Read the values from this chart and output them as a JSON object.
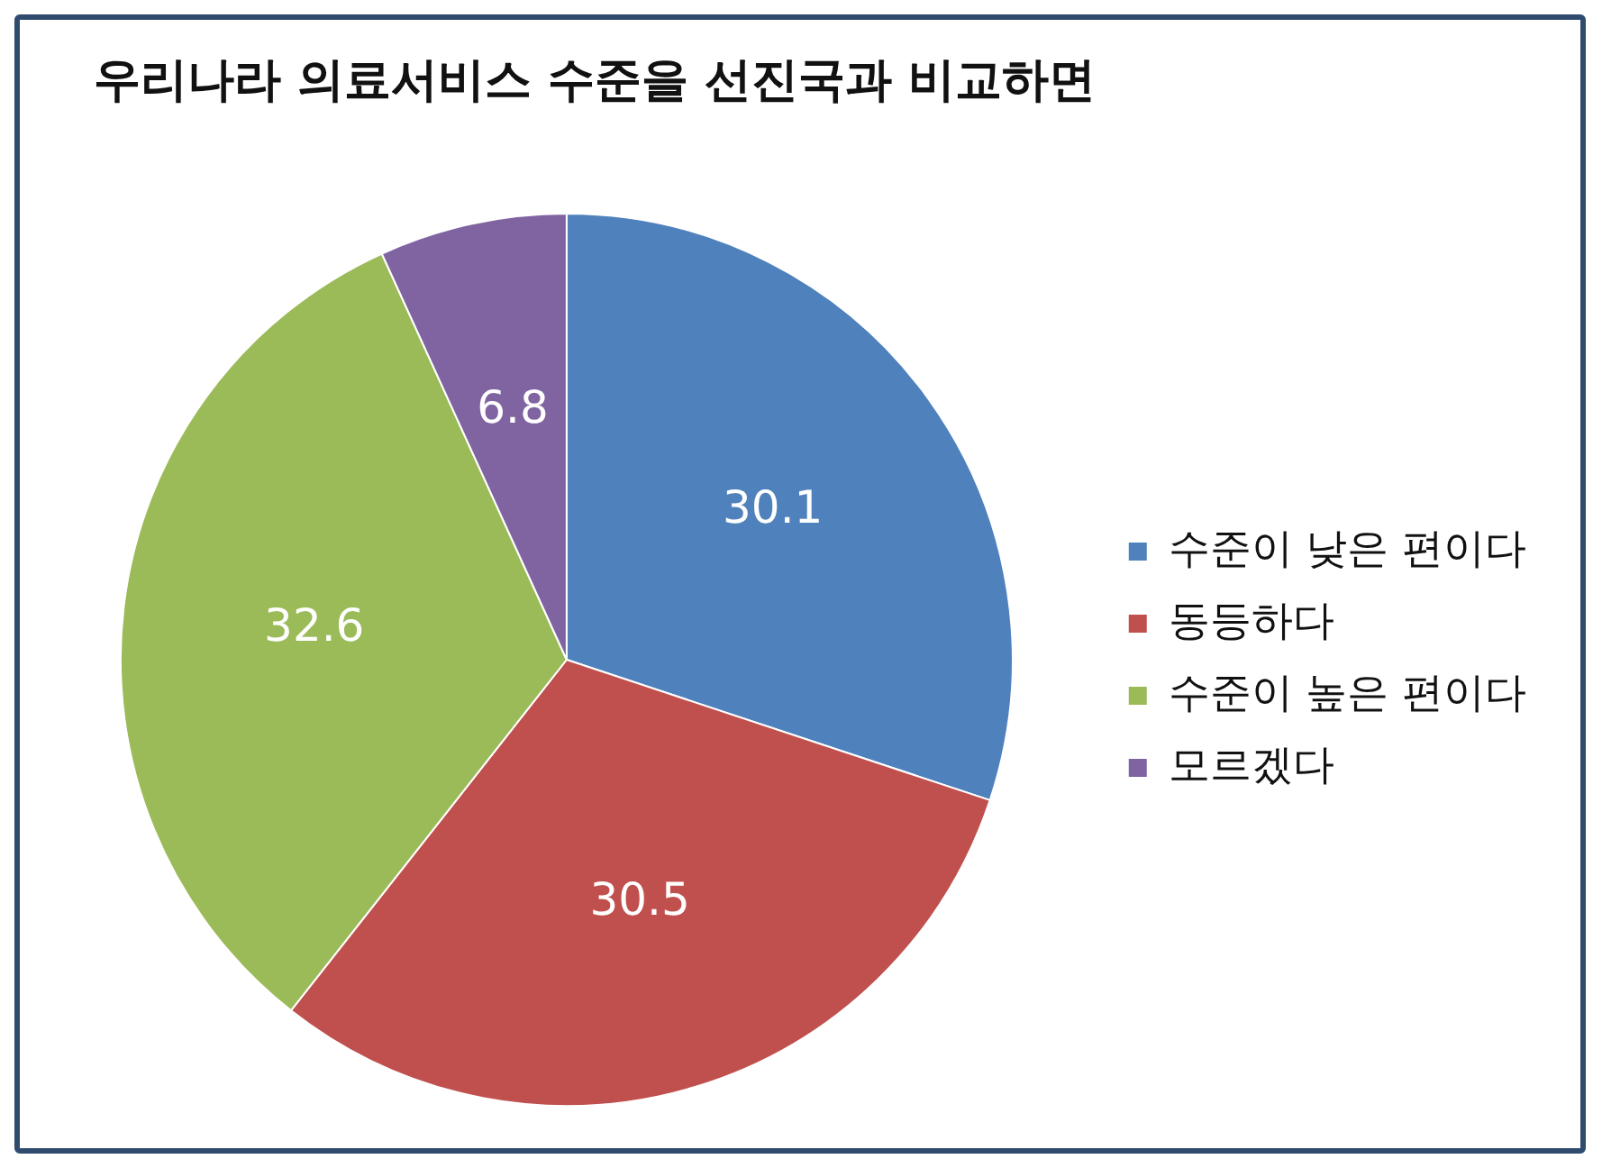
{
  "chart_data": {
    "type": "pie",
    "title": "우리나라 의료서비스 수준을 선진국과 비교하면",
    "categories": [
      "수준이 낮은 편이다",
      "동등하다",
      "수준이 높은 편이다",
      "모르겠다"
    ],
    "values": [
      30.1,
      30.5,
      32.6,
      6.8
    ],
    "colors": [
      "#4f81bd",
      "#c0504d",
      "#9bbb59",
      "#8064a2"
    ],
    "data_labels": true,
    "legend": "right"
  }
}
